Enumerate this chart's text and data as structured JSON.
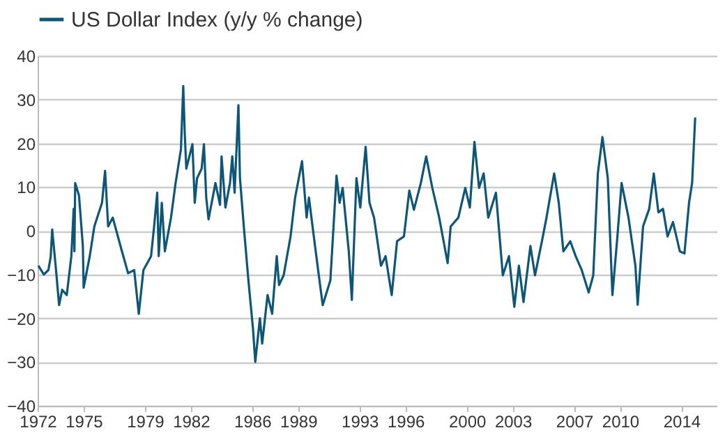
{
  "chart_data": {
    "type": "line",
    "legend": "top",
    "grid": "y",
    "marker": "none",
    "line_style": "solid",
    "xlim": [
      1972,
      2016.3
    ],
    "xticks": [
      1972,
      1975,
      1979,
      1982,
      1986,
      1989,
      1993,
      1996,
      2000,
      2003,
      2007,
      2010,
      2014
    ],
    "ylim": [
      -40,
      40
    ],
    "yticks": [
      -40,
      -30,
      -20,
      -10,
      0,
      10,
      20,
      30,
      40
    ],
    "x": [
      1972.05,
      1972.4,
      1972.7,
      1972.85,
      1972.95,
      1973.2,
      1973.4,
      1973.6,
      1973.9,
      1974.2,
      1974.35,
      1974.4,
      1974.45,
      1974.7,
      1974.95,
      1975.0,
      1975.4,
      1975.7,
      1976.2,
      1976.4,
      1976.6,
      1976.9,
      1977.5,
      1977.9,
      1978.3,
      1978.6,
      1978.9,
      1979.4,
      1979.6,
      1979.8,
      1979.9,
      1980.1,
      1980.3,
      1980.7,
      1981.0,
      1981.2,
      1981.35,
      1981.5,
      1981.6,
      1981.7,
      1982.1,
      1982.25,
      1982.4,
      1982.7,
      1982.85,
      1983.0,
      1983.15,
      1983.6,
      1983.9,
      1984.0,
      1984.25,
      1984.55,
      1984.7,
      1984.85,
      1985.1,
      1985.2,
      1985.45,
      1985.75,
      1986.05,
      1986.2,
      1986.5,
      1986.65,
      1987.0,
      1987.3,
      1987.6,
      1987.75,
      1988.05,
      1988.5,
      1988.8,
      1989.25,
      1989.55,
      1989.7,
      1990.0,
      1990.3,
      1990.6,
      1991.1,
      1991.5,
      1991.7,
      1991.9,
      1992.3,
      1992.5,
      1992.8,
      1993.05,
      1993.4,
      1993.65,
      1993.95,
      1994.4,
      1994.7,
      1995.1,
      1995.45,
      1995.9,
      1996.25,
      1996.55,
      1997.0,
      1997.35,
      1997.75,
      1998.2,
      1998.75,
      1998.95,
      1999.45,
      1999.9,
      2000.2,
      2000.5,
      2000.8,
      2001.1,
      2001.4,
      2001.9,
      2002.35,
      2002.75,
      2003.1,
      2003.4,
      2003.7,
      2004.15,
      2004.45,
      2004.9,
      2005.2,
      2005.7,
      2006.0,
      2006.3,
      2006.75,
      2007.1,
      2007.5,
      2007.95,
      2008.25,
      2008.55,
      2008.85,
      2009.2,
      2009.5,
      2009.8,
      2010.1,
      2010.55,
      2011.0,
      2011.15,
      2011.5,
      2011.9,
      2012.2,
      2012.5,
      2012.8,
      2013.1,
      2013.45,
      2013.9,
      2014.2,
      2014.5,
      2014.7,
      2014.9
    ],
    "series": [
      {
        "name": "US Dollar Index (y/y % change)",
        "color": "#0d5678",
        "values": [
          -8,
          -10,
          -9,
          -6,
          0.3,
          -9,
          -17,
          -13.5,
          -14.7,
          -5.8,
          5,
          -4.7,
          10.9,
          8,
          -3.5,
          -13,
          -5.8,
          1,
          6.4,
          13.7,
          1,
          3,
          -4.7,
          -9.7,
          -9,
          -19,
          -9,
          -5.8,
          1,
          8.7,
          -5.8,
          6.4,
          -4.7,
          3,
          10.9,
          15.3,
          18.7,
          33.1,
          22,
          14.2,
          19.8,
          6.4,
          12,
          14.2,
          19.8,
          7.6,
          2.6,
          10.9,
          5.9,
          17,
          5.3,
          10.9,
          17,
          8.7,
          28.7,
          12,
          1,
          -11.3,
          -22.4,
          -30,
          -20,
          -25.8,
          -14.7,
          -19,
          -5.8,
          -12.4,
          -10.2,
          -1.3,
          7.6,
          15.9,
          3,
          7.6,
          -0.8,
          -9,
          -17,
          -11.3,
          12.6,
          6.4,
          9.8,
          -4.7,
          -15.8,
          12,
          5.3,
          19.2,
          6.4,
          3,
          -8,
          -5.8,
          -14.7,
          -2.4,
          -1.3,
          9.2,
          4.8,
          10.9,
          17,
          9.8,
          3,
          -7.4,
          1,
          3,
          9.8,
          5.3,
          20.3,
          9.8,
          13.1,
          3,
          8.7,
          -10.2,
          -5.8,
          -17.4,
          -8,
          -16.3,
          -3.5,
          -10.2,
          -2.4,
          3,
          13.1,
          6.4,
          -4.7,
          -2.4,
          -5.8,
          -9,
          -14.1,
          -10.2,
          13.1,
          21.4,
          12,
          -14.7,
          -2.4,
          10.9,
          3,
          -8,
          -16.9,
          1,
          5,
          13.1,
          4.2,
          5,
          -1.3,
          2,
          -4.7,
          -5.2,
          6.4,
          10.9,
          25.9
        ]
      }
    ]
  }
}
